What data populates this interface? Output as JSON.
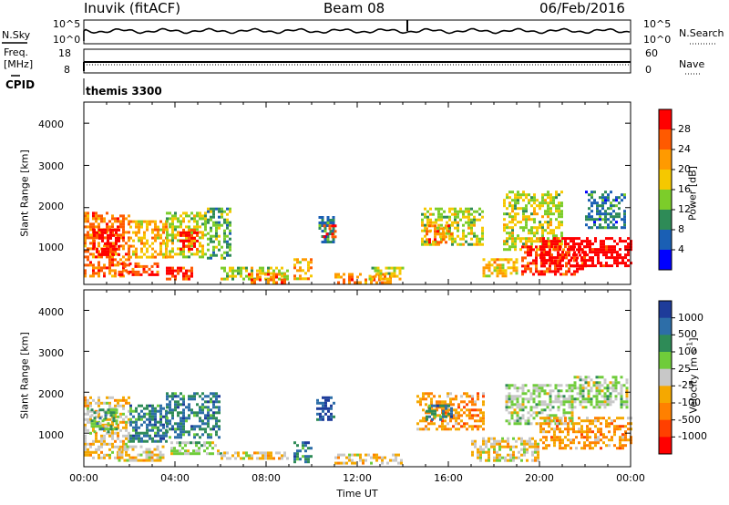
{
  "header": {
    "radar": "Inuvik (fitACF)",
    "beam": "Beam 08",
    "date": "06/Feb/2016"
  },
  "top_panels": {
    "nsky_label": "N.Sky",
    "nsky_ticks": [
      "10^5",
      "10^0"
    ],
    "nsearch_label": "N.Search",
    "nsearch_ticks": [
      "10^5",
      "10^0"
    ],
    "freq_label": "Freq.",
    "freq_unit": "[MHz]",
    "freq_ticks": [
      "18",
      "8"
    ],
    "nave_label": "Nave",
    "nave_ticks": [
      "60",
      "0"
    ],
    "cpid_label": "CPID",
    "cpid_value": "themis 3300"
  },
  "chart_data": [
    {
      "type": "heatmap",
      "name": "power",
      "xlabel": "",
      "ylabel": "Slant Range [km]",
      "xlim": [
        0,
        24
      ],
      "ylim": [
        180,
        4500
      ],
      "yticks": [
        "1000",
        "2000",
        "3000",
        "4000"
      ],
      "colorbar": {
        "label": "Power [dB]",
        "ticks": [
          "28",
          "24",
          "20",
          "16",
          "12",
          "8",
          "4"
        ],
        "colors": [
          "#ff0000",
          "#ff5a00",
          "#ff9a00",
          "#f5c800",
          "#7ccd2a",
          "#2e8b57",
          "#1a5fb4",
          "#0000ff"
        ]
      },
      "regions": [
        {
          "t": [
            0.0,
            2.0
          ],
          "r": [
            400,
            1900
          ],
          "level": 2
        },
        {
          "t": [
            0.4,
            1.6
          ],
          "r": [
            900,
            1500
          ],
          "level": 0
        },
        {
          "t": [
            1.5,
            3.2
          ],
          "r": [
            400,
            700
          ],
          "level": 1
        },
        {
          "t": [
            2.0,
            3.6
          ],
          "r": [
            800,
            1700
          ],
          "level": 3
        },
        {
          "t": [
            3.6,
            4.8
          ],
          "r": [
            300,
            600
          ],
          "level": 1
        },
        {
          "t": [
            3.6,
            5.4
          ],
          "r": [
            800,
            1900
          ],
          "level": 4
        },
        {
          "t": [
            4.2,
            5.0
          ],
          "r": [
            1000,
            1500
          ],
          "level": 1
        },
        {
          "t": [
            5.4,
            6.4
          ],
          "r": [
            800,
            2000
          ],
          "level": 5
        },
        {
          "t": [
            6.0,
            9.0
          ],
          "r": [
            300,
            600
          ],
          "level": 4
        },
        {
          "t": [
            7.2,
            8.8
          ],
          "r": [
            250,
            450
          ],
          "level": 2
        },
        {
          "t": [
            9.2,
            10.0
          ],
          "r": [
            300,
            800
          ],
          "level": 3
        },
        {
          "t": [
            10.3,
            11.0
          ],
          "r": [
            1200,
            1800
          ],
          "level": 6
        },
        {
          "t": [
            10.5,
            11.0
          ],
          "r": [
            1300,
            1600
          ],
          "level": 1
        },
        {
          "t": [
            11.0,
            13.5
          ],
          "r": [
            250,
            450
          ],
          "level": 2
        },
        {
          "t": [
            12.5,
            14.0
          ],
          "r": [
            300,
            600
          ],
          "level": 4
        },
        {
          "t": [
            14.8,
            17.5
          ],
          "r": [
            1100,
            2000
          ],
          "level": 4
        },
        {
          "t": [
            15.0,
            16.2
          ],
          "r": [
            1200,
            1600
          ],
          "level": 2
        },
        {
          "t": [
            17.5,
            19.0
          ],
          "r": [
            400,
            800
          ],
          "level": 3
        },
        {
          "t": [
            18.4,
            21.0
          ],
          "r": [
            1000,
            2400
          ],
          "level": 4
        },
        {
          "t": [
            19.2,
            22.0
          ],
          "r": [
            400,
            1100
          ],
          "level": 1
        },
        {
          "t": [
            20.0,
            24.0
          ],
          "r": [
            600,
            1300
          ],
          "level": 0
        },
        {
          "t": [
            22.0,
            23.8
          ],
          "r": [
            1500,
            2400
          ],
          "level": 6
        }
      ]
    },
    {
      "type": "heatmap",
      "name": "velocity",
      "xlabel": "Time UT",
      "ylabel": "Slant Range [km]",
      "xlim": [
        0,
        24
      ],
      "ylim": [
        180,
        4500
      ],
      "xticks": [
        "00:00",
        "04:00",
        "08:00",
        "12:00",
        "16:00",
        "20:00",
        "00:00"
      ],
      "yticks": [
        "1000",
        "2000",
        "3000",
        "4000"
      ],
      "colorbar": {
        "label": "Velocity [m s",
        "unit_sup": "-1",
        "label_end": "]",
        "ticks": [
          "1000",
          "500",
          "100",
          "25",
          "-25",
          "-100",
          "-500",
          "-1000"
        ],
        "colors": [
          "#1e3c9a",
          "#2d6ea8",
          "#2e8b57",
          "#6fcc3a",
          "#c8c8c8",
          "#f5a800",
          "#ff8000",
          "#ff4000",
          "#ff0000"
        ]
      },
      "regions": [
        {
          "t": [
            0.0,
            2.0
          ],
          "r": [
            400,
            1900
          ],
          "level": 5
        },
        {
          "t": [
            0.3,
            1.5
          ],
          "r": [
            1000,
            1600
          ],
          "level": 3
        },
        {
          "t": [
            1.5,
            3.5
          ],
          "r": [
            300,
            700
          ],
          "level": 5
        },
        {
          "t": [
            2.0,
            3.6
          ],
          "r": [
            800,
            1700
          ],
          "level": 2
        },
        {
          "t": [
            3.6,
            6.0
          ],
          "r": [
            900,
            2000
          ],
          "level": 2
        },
        {
          "t": [
            3.8,
            6.0
          ],
          "r": [
            500,
            800
          ],
          "level": 4
        },
        {
          "t": [
            6.0,
            9.0
          ],
          "r": [
            350,
            550
          ],
          "level": 5
        },
        {
          "t": [
            9.2,
            10.0
          ],
          "r": [
            300,
            800
          ],
          "level": 2
        },
        {
          "t": [
            10.2,
            11.0
          ],
          "r": [
            1300,
            1900
          ],
          "level": 1
        },
        {
          "t": [
            11.0,
            14.0
          ],
          "r": [
            250,
            500
          ],
          "level": 5
        },
        {
          "t": [
            14.6,
            17.5
          ],
          "r": [
            1100,
            2000
          ],
          "level": 6
        },
        {
          "t": [
            15.0,
            16.2
          ],
          "r": [
            1300,
            1700
          ],
          "level": 2
        },
        {
          "t": [
            17.0,
            20.0
          ],
          "r": [
            300,
            900
          ],
          "level": 5
        },
        {
          "t": [
            18.5,
            21.5
          ],
          "r": [
            1200,
            2200
          ],
          "level": 4
        },
        {
          "t": [
            20.0,
            24.0
          ],
          "r": [
            600,
            1400
          ],
          "level": 6
        },
        {
          "t": [
            21.5,
            23.8
          ],
          "r": [
            1600,
            2400
          ],
          "level": 4
        }
      ]
    }
  ]
}
